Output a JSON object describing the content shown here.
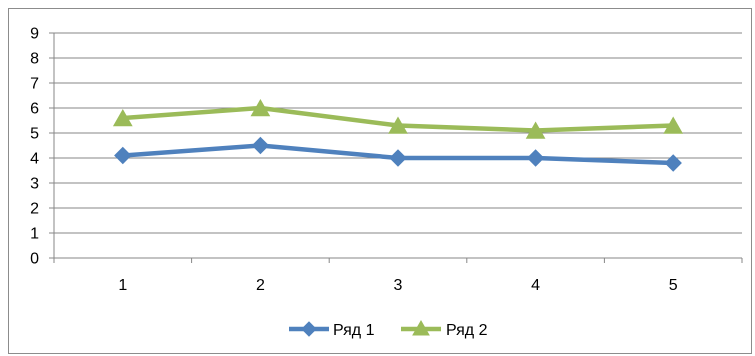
{
  "chart_data": {
    "type": "line",
    "title": "",
    "xlabel": "",
    "ylabel": "",
    "categories": [
      "1",
      "2",
      "3",
      "4",
      "5"
    ],
    "ylim": [
      0,
      9
    ],
    "yticks": [
      0,
      1,
      2,
      3,
      4,
      5,
      6,
      7,
      8,
      9
    ],
    "grid": true,
    "legend_position": "bottom",
    "series": [
      {
        "name": "Ряд 1",
        "values": [
          4.1,
          4.5,
          4.0,
          4.0,
          3.8
        ],
        "color": "#4f81bd",
        "marker": "diamond"
      },
      {
        "name": "Ряд 2",
        "values": [
          5.6,
          6.0,
          5.3,
          5.1,
          5.3
        ],
        "color": "#9bbb59",
        "marker": "triangle"
      }
    ]
  }
}
